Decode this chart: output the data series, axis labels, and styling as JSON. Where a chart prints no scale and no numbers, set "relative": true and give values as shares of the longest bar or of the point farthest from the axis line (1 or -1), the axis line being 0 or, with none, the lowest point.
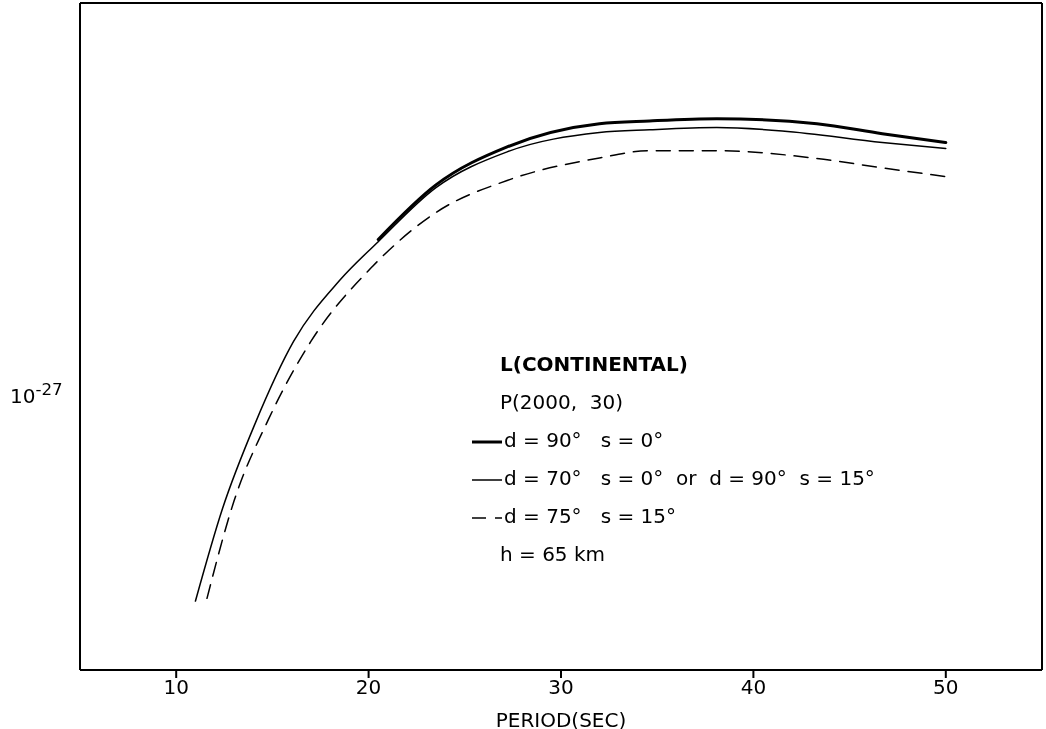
{
  "chart_data": {
    "type": "line",
    "relative": true,
    "xlabel": "PERIOD(SEC)",
    "xlim": [
      5,
      55
    ],
    "xticks": [
      10,
      20,
      30,
      40,
      50
    ],
    "legend": "right",
    "marker": "none",
    "annotations": [
      "10$^{-27}$",
      "L(CONTINENTAL)",
      "P(2000,  30)",
      "h = 65 km"
    ],
    "series": [
      {
        "name": "d = 90°   s = 0°",
        "color": "#000000",
        "line_style": "solid",
        "x": [
          20.5,
          23.5,
          27.2,
          32.0,
          34.6,
          38.1,
          43.3,
          46.7,
          50.0
        ],
        "values": [
          0.781,
          0.88,
          0.949,
          0.991,
          0.996,
          1.0,
          0.991,
          0.973,
          0.957
        ]
      },
      {
        "name": "d = 70°   s = 0°  or  d = 90°  s = 15°",
        "color": "#000000",
        "line_style": "solid",
        "x": [
          11.0,
          12.4,
          14.1,
          16.1,
          18.5,
          20.5,
          23.5,
          27.2,
          32.0,
          34.6,
          38.1,
          41.5,
          46.7,
          50.0
        ],
        "values": [
          0.125,
          0.292,
          0.447,
          0.596,
          0.707,
          0.777,
          0.875,
          0.94,
          0.975,
          0.98,
          0.984,
          0.978,
          0.957,
          0.946
        ]
      },
      {
        "name": "d = 75°   s = 15°",
        "color": "#000000",
        "line_style": "dashed",
        "x": [
          11.6,
          13.0,
          14.8,
          17.0,
          20.2,
          23.5,
          27.2,
          32.0,
          34.6,
          38.1,
          43.3,
          46.7,
          50.0
        ],
        "values": [
          0.13,
          0.306,
          0.455,
          0.596,
          0.732,
          0.83,
          0.888,
          0.929,
          0.942,
          0.942,
          0.928,
          0.911,
          0.895
        ]
      }
    ]
  }
}
